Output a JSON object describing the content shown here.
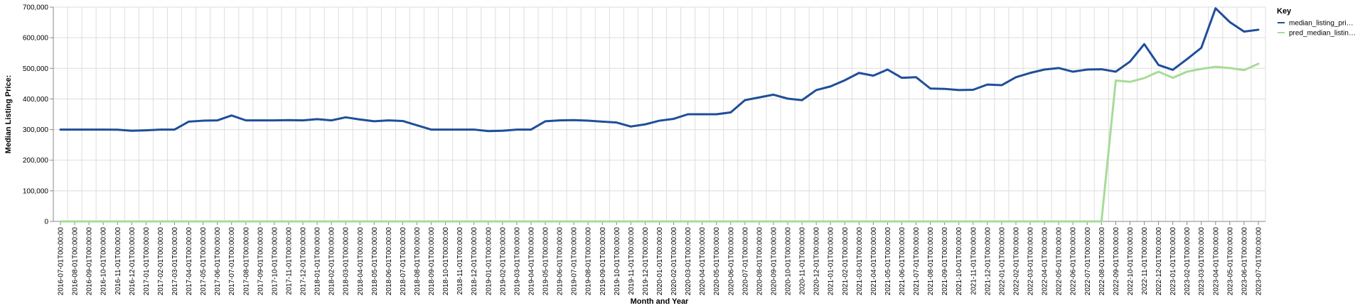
{
  "chart_data": {
    "type": "line",
    "xlabel": "Month and Year",
    "ylabel": "Median Listing Price:",
    "ylim": [
      0,
      700000
    ],
    "yticks": [
      0,
      100000,
      200000,
      300000,
      400000,
      500000,
      600000,
      700000
    ],
    "ytick_labels": [
      "0",
      "100,000",
      "200,000",
      "300,000",
      "400,000",
      "500,000",
      "600,000",
      "700,000"
    ],
    "grid": true,
    "legend": {
      "title": "Key",
      "placement": "right"
    },
    "x": [
      "2016-07-01T00:00:00",
      "2016-08-01T00:00:00",
      "2016-09-01T00:00:00",
      "2016-10-01T00:00:00",
      "2016-11-01T00:00:00",
      "2016-12-01T00:00:00",
      "2017-01-01T00:00:00",
      "2017-02-01T00:00:00",
      "2017-03-01T00:00:00",
      "2017-04-01T00:00:00",
      "2017-05-01T00:00:00",
      "2017-06-01T00:00:00",
      "2017-07-01T00:00:00",
      "2017-08-01T00:00:00",
      "2017-09-01T00:00:00",
      "2017-10-01T00:00:00",
      "2017-11-01T00:00:00",
      "2017-12-01T00:00:00",
      "2018-01-01T00:00:00",
      "2018-02-01T00:00:00",
      "2018-03-01T00:00:00",
      "2018-04-01T00:00:00",
      "2018-05-01T00:00:00",
      "2018-06-01T00:00:00",
      "2018-07-01T00:00:00",
      "2018-08-01T00:00:00",
      "2018-09-01T00:00:00",
      "2018-10-01T00:00:00",
      "2018-11-01T00:00:00",
      "2018-12-01T00:00:00",
      "2019-01-01T00:00:00",
      "2019-02-01T00:00:00",
      "2019-03-01T00:00:00",
      "2019-04-01T00:00:00",
      "2019-05-01T00:00:00",
      "2019-06-01T00:00:00",
      "2019-07-01T00:00:00",
      "2019-08-01T00:00:00",
      "2019-09-01T00:00:00",
      "2019-10-01T00:00:00",
      "2019-11-01T00:00:00",
      "2019-12-01T00:00:00",
      "2020-01-01T00:00:00",
      "2020-02-01T00:00:00",
      "2020-03-01T00:00:00",
      "2020-04-01T00:00:00",
      "2020-05-01T00:00:00",
      "2020-06-01T00:00:00",
      "2020-07-01T00:00:00",
      "2020-08-01T00:00:00",
      "2020-09-01T00:00:00",
      "2020-10-01T00:00:00",
      "2020-11-01T00:00:00",
      "2020-12-01T00:00:00",
      "2021-01-01T00:00:00",
      "2021-02-01T00:00:00",
      "2021-03-01T00:00:00",
      "2021-04-01T00:00:00",
      "2021-05-01T00:00:00",
      "2021-06-01T00:00:00",
      "2021-07-01T00:00:00",
      "2021-08-01T00:00:00",
      "2021-09-01T00:00:00",
      "2021-10-01T00:00:00",
      "2021-11-01T00:00:00",
      "2021-12-01T00:00:00",
      "2022-01-01T00:00:00",
      "2022-02-01T00:00:00",
      "2022-03-01T00:00:00",
      "2022-04-01T00:00:00",
      "2022-05-01T00:00:00",
      "2022-06-01T00:00:00",
      "2022-07-01T00:00:00",
      "2022-08-01T00:00:00",
      "2022-09-01T00:00:00",
      "2022-10-01T00:00:00",
      "2022-11-01T00:00:00",
      "2022-12-01T00:00:00",
      "2023-01-01T00:00:00",
      "2023-02-01T00:00:00",
      "2023-03-01T00:00:00",
      "2023-04-01T00:00:00",
      "2023-05-01T00:00:00",
      "2023-06-01T00:00:00",
      "2023-07-01T00:00:00"
    ],
    "series": [
      {
        "name": "median_listing_pri…",
        "color": "#1f4e9a",
        "values": [
          300000,
          300000,
          300000,
          300000,
          299500,
          296000,
          297500,
          299900,
          300000,
          326000,
          329000,
          329900,
          346000,
          330000,
          330000,
          330000,
          331000,
          330000,
          334000,
          330000,
          340000,
          333000,
          327000,
          330000,
          328000,
          314000,
          300000,
          300000,
          300000,
          300000,
          295000,
          296000,
          300000,
          300000,
          327000,
          330000,
          331000,
          329000,
          326000,
          323000,
          310000,
          317000,
          329000,
          335000,
          350000,
          350000,
          350000,
          356000,
          396000,
          405000,
          414000,
          401000,
          396000,
          429000,
          441000,
          461000,
          485000,
          476000,
          496000,
          469000,
          471000,
          434000,
          433000,
          429000,
          430000,
          447000,
          445000,
          471000,
          485000,
          496000,
          501000,
          489000,
          496000,
          497000,
          489000,
          522000,
          579000,
          511000,
          495000,
          530000,
          567000,
          696000,
          651000,
          620000,
          626000
        ]
      },
      {
        "name": "pred_median_listin…",
        "color": "#a6dc98",
        "values": [
          0,
          0,
          0,
          0,
          0,
          0,
          0,
          0,
          0,
          0,
          0,
          0,
          0,
          0,
          0,
          0,
          0,
          0,
          0,
          0,
          0,
          0,
          0,
          0,
          0,
          0,
          0,
          0,
          0,
          0,
          0,
          0,
          0,
          0,
          0,
          0,
          0,
          0,
          0,
          0,
          0,
          0,
          0,
          0,
          0,
          0,
          0,
          0,
          0,
          0,
          0,
          0,
          0,
          0,
          0,
          0,
          0,
          0,
          0,
          0,
          0,
          0,
          0,
          0,
          0,
          0,
          0,
          0,
          0,
          0,
          0,
          0,
          0,
          0,
          460000,
          456000,
          468000,
          489000,
          469000,
          489000,
          498000,
          505000,
          501000,
          494000,
          515000
        ]
      }
    ]
  }
}
